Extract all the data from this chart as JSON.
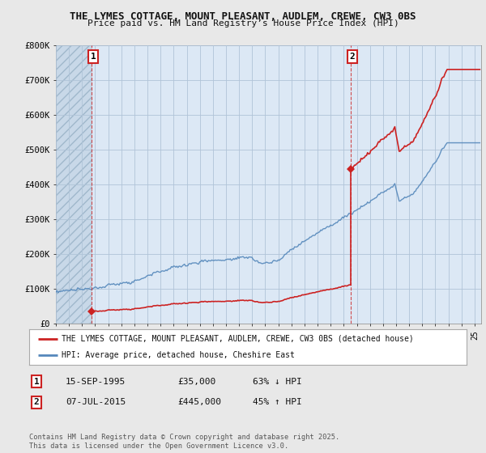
{
  "title_line1": "THE LYMES COTTAGE, MOUNT PLEASANT, AUDLEM, CREWE, CW3 0BS",
  "title_line2": "Price paid vs. HM Land Registry’s House Price Index (HPI)",
  "ylim": [
    0,
    800000
  ],
  "yticks": [
    0,
    100000,
    200000,
    300000,
    400000,
    500000,
    600000,
    700000,
    800000
  ],
  "ytick_labels": [
    "£0",
    "£100K",
    "£200K",
    "£300K",
    "£400K",
    "£500K",
    "£600K",
    "£700K",
    "£800K"
  ],
  "background_color": "#e8e8e8",
  "plot_bg_color": "#dce8f5",
  "hatch_bg_color": "#c8d8e8",
  "grid_color": "#b0c4d8",
  "hpi_color": "#5588bb",
  "price_color": "#cc2222",
  "sale1_date": 1995.71,
  "sale1_price": 35000,
  "sale2_date": 2015.52,
  "sale2_price": 445000,
  "legend_entries": [
    "THE LYMES COTTAGE, MOUNT PLEASANT, AUDLEM, CREWE, CW3 0BS (detached house)",
    "HPI: Average price, detached house, Cheshire East"
  ],
  "footer_text": "Contains HM Land Registry data © Crown copyright and database right 2025.\nThis data is licensed under the Open Government Licence v3.0.",
  "xmin": 1993.0,
  "xmax": 2025.5
}
